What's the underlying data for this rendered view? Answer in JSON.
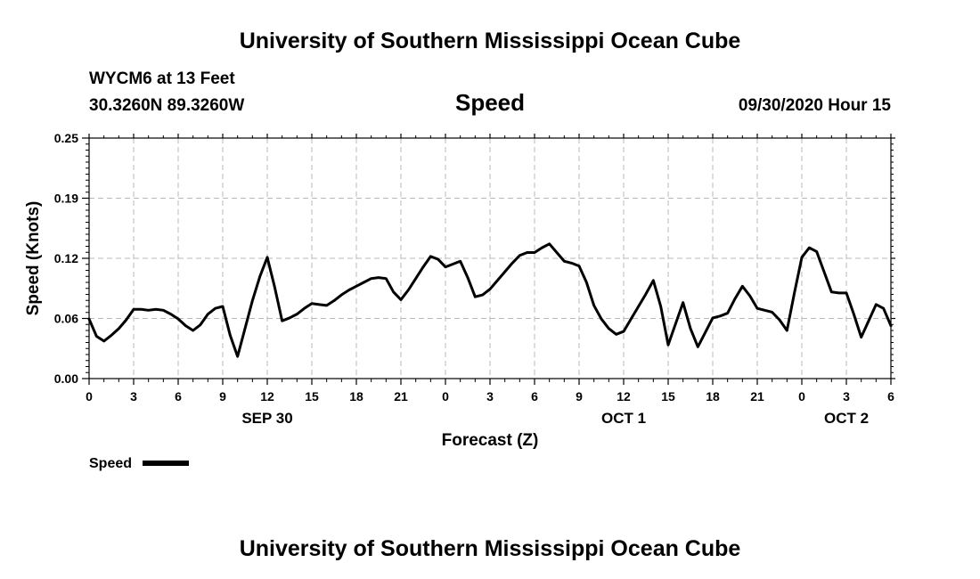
{
  "chart_data": {
    "type": "line",
    "title": "University of Southern Mississippi Ocean Cube",
    "footer": "University of Southern Mississippi Ocean Cube",
    "station": "WYCM6 at 13 Feet",
    "location": "30.3260N 89.3260W",
    "subtitle": "Speed",
    "timestamp": "09/30/2020 Hour 15",
    "xlabel": "Forecast (Z)",
    "ylabel": "Speed (Knots)",
    "ylim": [
      0,
      0.25
    ],
    "xlim": [
      0,
      54
    ],
    "yticks": [
      {
        "value": 0.0,
        "label": "0.00"
      },
      {
        "value": 0.0625,
        "label": "0.06"
      },
      {
        "value": 0.125,
        "label": "0.12"
      },
      {
        "value": 0.1875,
        "label": "0.19"
      },
      {
        "value": 0.25,
        "label": "0.25"
      }
    ],
    "xticks": [
      {
        "value": 0,
        "label": "0"
      },
      {
        "value": 3,
        "label": "3"
      },
      {
        "value": 6,
        "label": "6"
      },
      {
        "value": 9,
        "label": "9"
      },
      {
        "value": 12,
        "label": "12"
      },
      {
        "value": 15,
        "label": "15"
      },
      {
        "value": 18,
        "label": "18"
      },
      {
        "value": 21,
        "label": "21"
      },
      {
        "value": 24,
        "label": "0"
      },
      {
        "value": 27,
        "label": "3"
      },
      {
        "value": 30,
        "label": "6"
      },
      {
        "value": 33,
        "label": "9"
      },
      {
        "value": 36,
        "label": "12"
      },
      {
        "value": 39,
        "label": "15"
      },
      {
        "value": 42,
        "label": "18"
      },
      {
        "value": 45,
        "label": "21"
      },
      {
        "value": 48,
        "label": "0"
      },
      {
        "value": 51,
        "label": "3"
      },
      {
        "value": 54,
        "label": "6"
      }
    ],
    "date_labels": [
      {
        "value": 12,
        "label": "SEP 30"
      },
      {
        "value": 36,
        "label": "OCT 1"
      },
      {
        "value": 51,
        "label": "OCT 2"
      }
    ],
    "grid": true,
    "legend": {
      "position": "bottom-left",
      "label": "Speed"
    },
    "series": [
      {
        "name": "Speed",
        "color": "#000000",
        "x": [
          0,
          0.5,
          1,
          1.5,
          2,
          2.5,
          3,
          3.5,
          4,
          4.5,
          5,
          5.5,
          6,
          6.5,
          7,
          7.5,
          8,
          8.5,
          9,
          9.5,
          10,
          10.5,
          11,
          11.5,
          12,
          12.5,
          13,
          13.5,
          14,
          14.5,
          15,
          15.5,
          16,
          16.5,
          17,
          17.5,
          18,
          18.5,
          19,
          19.5,
          20,
          20.5,
          21,
          21.5,
          22,
          22.5,
          23,
          23.5,
          24,
          24.5,
          25,
          25.5,
          26,
          26.5,
          27,
          27.5,
          28,
          28.5,
          29,
          29.5,
          30,
          30.5,
          31,
          31.5,
          32,
          32.5,
          33,
          33.5,
          34,
          34.5,
          35,
          35.5,
          36,
          36.5,
          37,
          37.5,
          38,
          38.5,
          39,
          39.5,
          40,
          40.5,
          41,
          41.5,
          42,
          42.5,
          43,
          43.5,
          44,
          44.5,
          45,
          45.5,
          46,
          46.5,
          47,
          47.5,
          48,
          48.5,
          49,
          49.5,
          50,
          50.5,
          51,
          51.5,
          52,
          52.5,
          53,
          53.5,
          54
        ],
        "values": [
          0.062,
          0.044,
          0.039,
          0.045,
          0.052,
          0.061,
          0.072,
          0.072,
          0.071,
          0.072,
          0.071,
          0.067,
          0.062,
          0.055,
          0.05,
          0.056,
          0.067,
          0.073,
          0.075,
          0.045,
          0.023,
          0.052,
          0.081,
          0.106,
          0.126,
          0.095,
          0.06,
          0.063,
          0.067,
          0.073,
          0.078,
          0.077,
          0.076,
          0.081,
          0.087,
          0.092,
          0.096,
          0.1,
          0.104,
          0.105,
          0.104,
          0.09,
          0.082,
          0.092,
          0.104,
          0.116,
          0.127,
          0.124,
          0.116,
          0.119,
          0.122,
          0.105,
          0.085,
          0.087,
          0.093,
          0.102,
          0.111,
          0.12,
          0.128,
          0.131,
          0.131,
          0.136,
          0.14,
          0.131,
          0.122,
          0.12,
          0.117,
          0.1,
          0.076,
          0.062,
          0.052,
          0.046,
          0.049,
          0.062,
          0.075,
          0.088,
          0.102,
          0.075,
          0.035,
          0.057,
          0.079,
          0.052,
          0.033,
          0.048,
          0.063,
          0.065,
          0.068,
          0.083,
          0.096,
          0.086,
          0.073,
          0.071,
          0.069,
          0.061,
          0.05,
          0.089,
          0.126,
          0.136,
          0.132,
          0.111,
          0.09,
          0.089,
          0.089,
          0.067,
          0.043,
          0.06,
          0.077,
          0.073,
          0.055
        ]
      }
    ]
  }
}
